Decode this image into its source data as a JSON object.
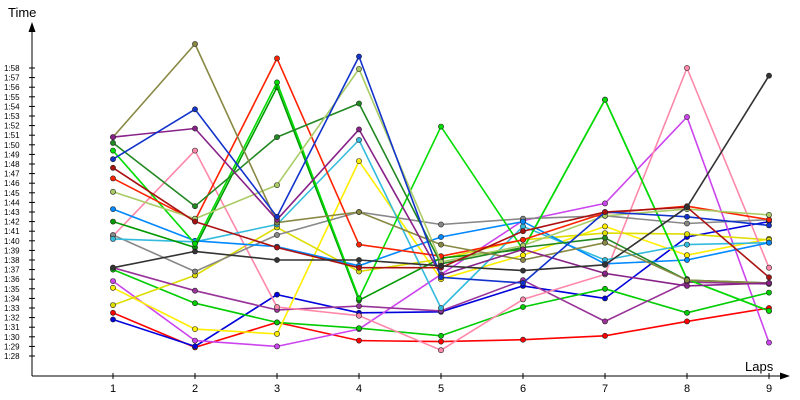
{
  "chart_data": {
    "type": "line",
    "xlabel": "Laps",
    "ylabel": "Time",
    "x": [
      1,
      2,
      3,
      4,
      5,
      6,
      7,
      8,
      9
    ],
    "x_tick_labels": [
      "1",
      "2",
      "3",
      "4",
      "5",
      "6",
      "7",
      "8",
      "9"
    ],
    "y_tick_labels": [
      "1:28",
      "1:29",
      "1:30",
      "1:31",
      "1:32",
      "1:33",
      "1:34",
      "1:35",
      "1:36",
      "1:37",
      "1:38",
      "1:39",
      "1:40",
      "1:41",
      "1:42",
      "1:43",
      "1:44",
      "1:45",
      "1:46",
      "1:47",
      "1:48",
      "1:49",
      "1:50",
      "1:51",
      "1:52",
      "1:53",
      "1:54",
      "1:55",
      "1:56",
      "1:57",
      "1:58"
    ],
    "y_unit": "seconds",
    "ylim": [
      87,
      119
    ],
    "grid": false,
    "legend": "none",
    "series": [
      {
        "color": "#ff0000",
        "values": [
          92.5,
          88.9,
          91.5,
          89.6,
          89.5,
          89.7,
          90.1,
          91.6,
          93.0
        ]
      },
      {
        "color": "#0000dd",
        "values": [
          91.8,
          89.0,
          94.4,
          92.5,
          92.6,
          95.3,
          94.0,
          100.4,
          102.0
        ]
      },
      {
        "color": "#cc44ee",
        "values": [
          95.8,
          89.6,
          89.0,
          90.8,
          96.5,
          102.1,
          103.9,
          112.9,
          89.4
        ]
      },
      {
        "color": "#00cc00",
        "values": [
          97.0,
          93.5,
          91.5,
          90.9,
          90.1,
          93.1,
          95.0,
          92.5,
          94.6
        ]
      },
      {
        "color": "#ffee00",
        "values": [
          95.1,
          90.8,
          90.3,
          108.3,
          96.0,
          98.5,
          101.5,
          98.5,
          100.2
        ]
      },
      {
        "color": "#dddd00",
        "values": [
          93.3,
          96.4,
          101.4,
          96.8,
          98.1,
          100.1,
          100.8,
          100.7,
          100.1
        ]
      },
      {
        "color": "#993399",
        "values": [
          97.2,
          94.8,
          92.8,
          93.2,
          92.7,
          95.9,
          91.6,
          95.7,
          95.5
        ]
      },
      {
        "color": "#ff88aa",
        "values": [
          100.5,
          109.4,
          93.1,
          92.2,
          88.6,
          93.9,
          96.5,
          118.0,
          97.2
        ]
      },
      {
        "color": "#888888",
        "values": [
          100.6,
          96.8,
          100.6,
          103.0,
          101.7,
          102.3,
          102.6,
          101.8,
          102.2
        ]
      },
      {
        "color": "#33bbdd",
        "values": [
          100.2,
          99.9,
          101.7,
          110.5,
          93.0,
          101.5,
          98.0,
          99.6,
          99.8
        ]
      },
      {
        "color": "#0088ff",
        "values": [
          103.3,
          100.0,
          99.4,
          97.4,
          100.4,
          102.0,
          97.6,
          98.0,
          99.8
        ]
      },
      {
        "color": "#009900",
        "values": [
          102.0,
          99.3,
          116.0,
          93.8,
          98.2,
          99.1,
          114.7,
          96.0,
          92.7
        ]
      },
      {
        "color": "#00dd00",
        "values": [
          109.4,
          99.7,
          116.5,
          94.0,
          111.9,
          99.1,
          114.7,
          96.0,
          92.7
        ]
      },
      {
        "color": "#ff2200",
        "values": [
          106.5,
          102.1,
          119.0,
          99.6,
          98.4,
          100.1,
          102.9,
          103.6,
          102.2
        ]
      },
      {
        "color": "#228822",
        "values": [
          110.2,
          103.6,
          110.8,
          114.3,
          97.6,
          99.3,
          100.3,
          95.9,
          95.6
        ]
      },
      {
        "color": "#aacc66",
        "values": [
          105.1,
          102.3,
          105.8,
          117.9,
          97.8,
          99.5,
          102.6,
          103.3,
          102.7
        ]
      },
      {
        "color": "#888844",
        "values": [
          110.8,
          120.5,
          101.9,
          103.0,
          99.6,
          98.0,
          99.8,
          95.9,
          95.6
        ]
      },
      {
        "color": "#882288",
        "values": [
          110.8,
          111.7,
          102.2,
          111.6,
          96.4,
          99.1,
          96.6,
          95.3,
          95.6
        ]
      },
      {
        "color": "#1133cc",
        "values": [
          108.5,
          113.7,
          102.5,
          119.2,
          96.2,
          95.6,
          103.0,
          102.5,
          101.6
        ]
      },
      {
        "color": "#aa1111",
        "values": [
          107.6,
          102.0,
          99.3,
          97.2,
          97.2,
          101.0,
          103.0,
          103.5,
          96.2
        ]
      },
      {
        "color": "#333333",
        "values": [
          97.2,
          98.9,
          98.0,
          98.0,
          97.4,
          96.9,
          97.5,
          103.5,
          117.2
        ]
      }
    ]
  }
}
